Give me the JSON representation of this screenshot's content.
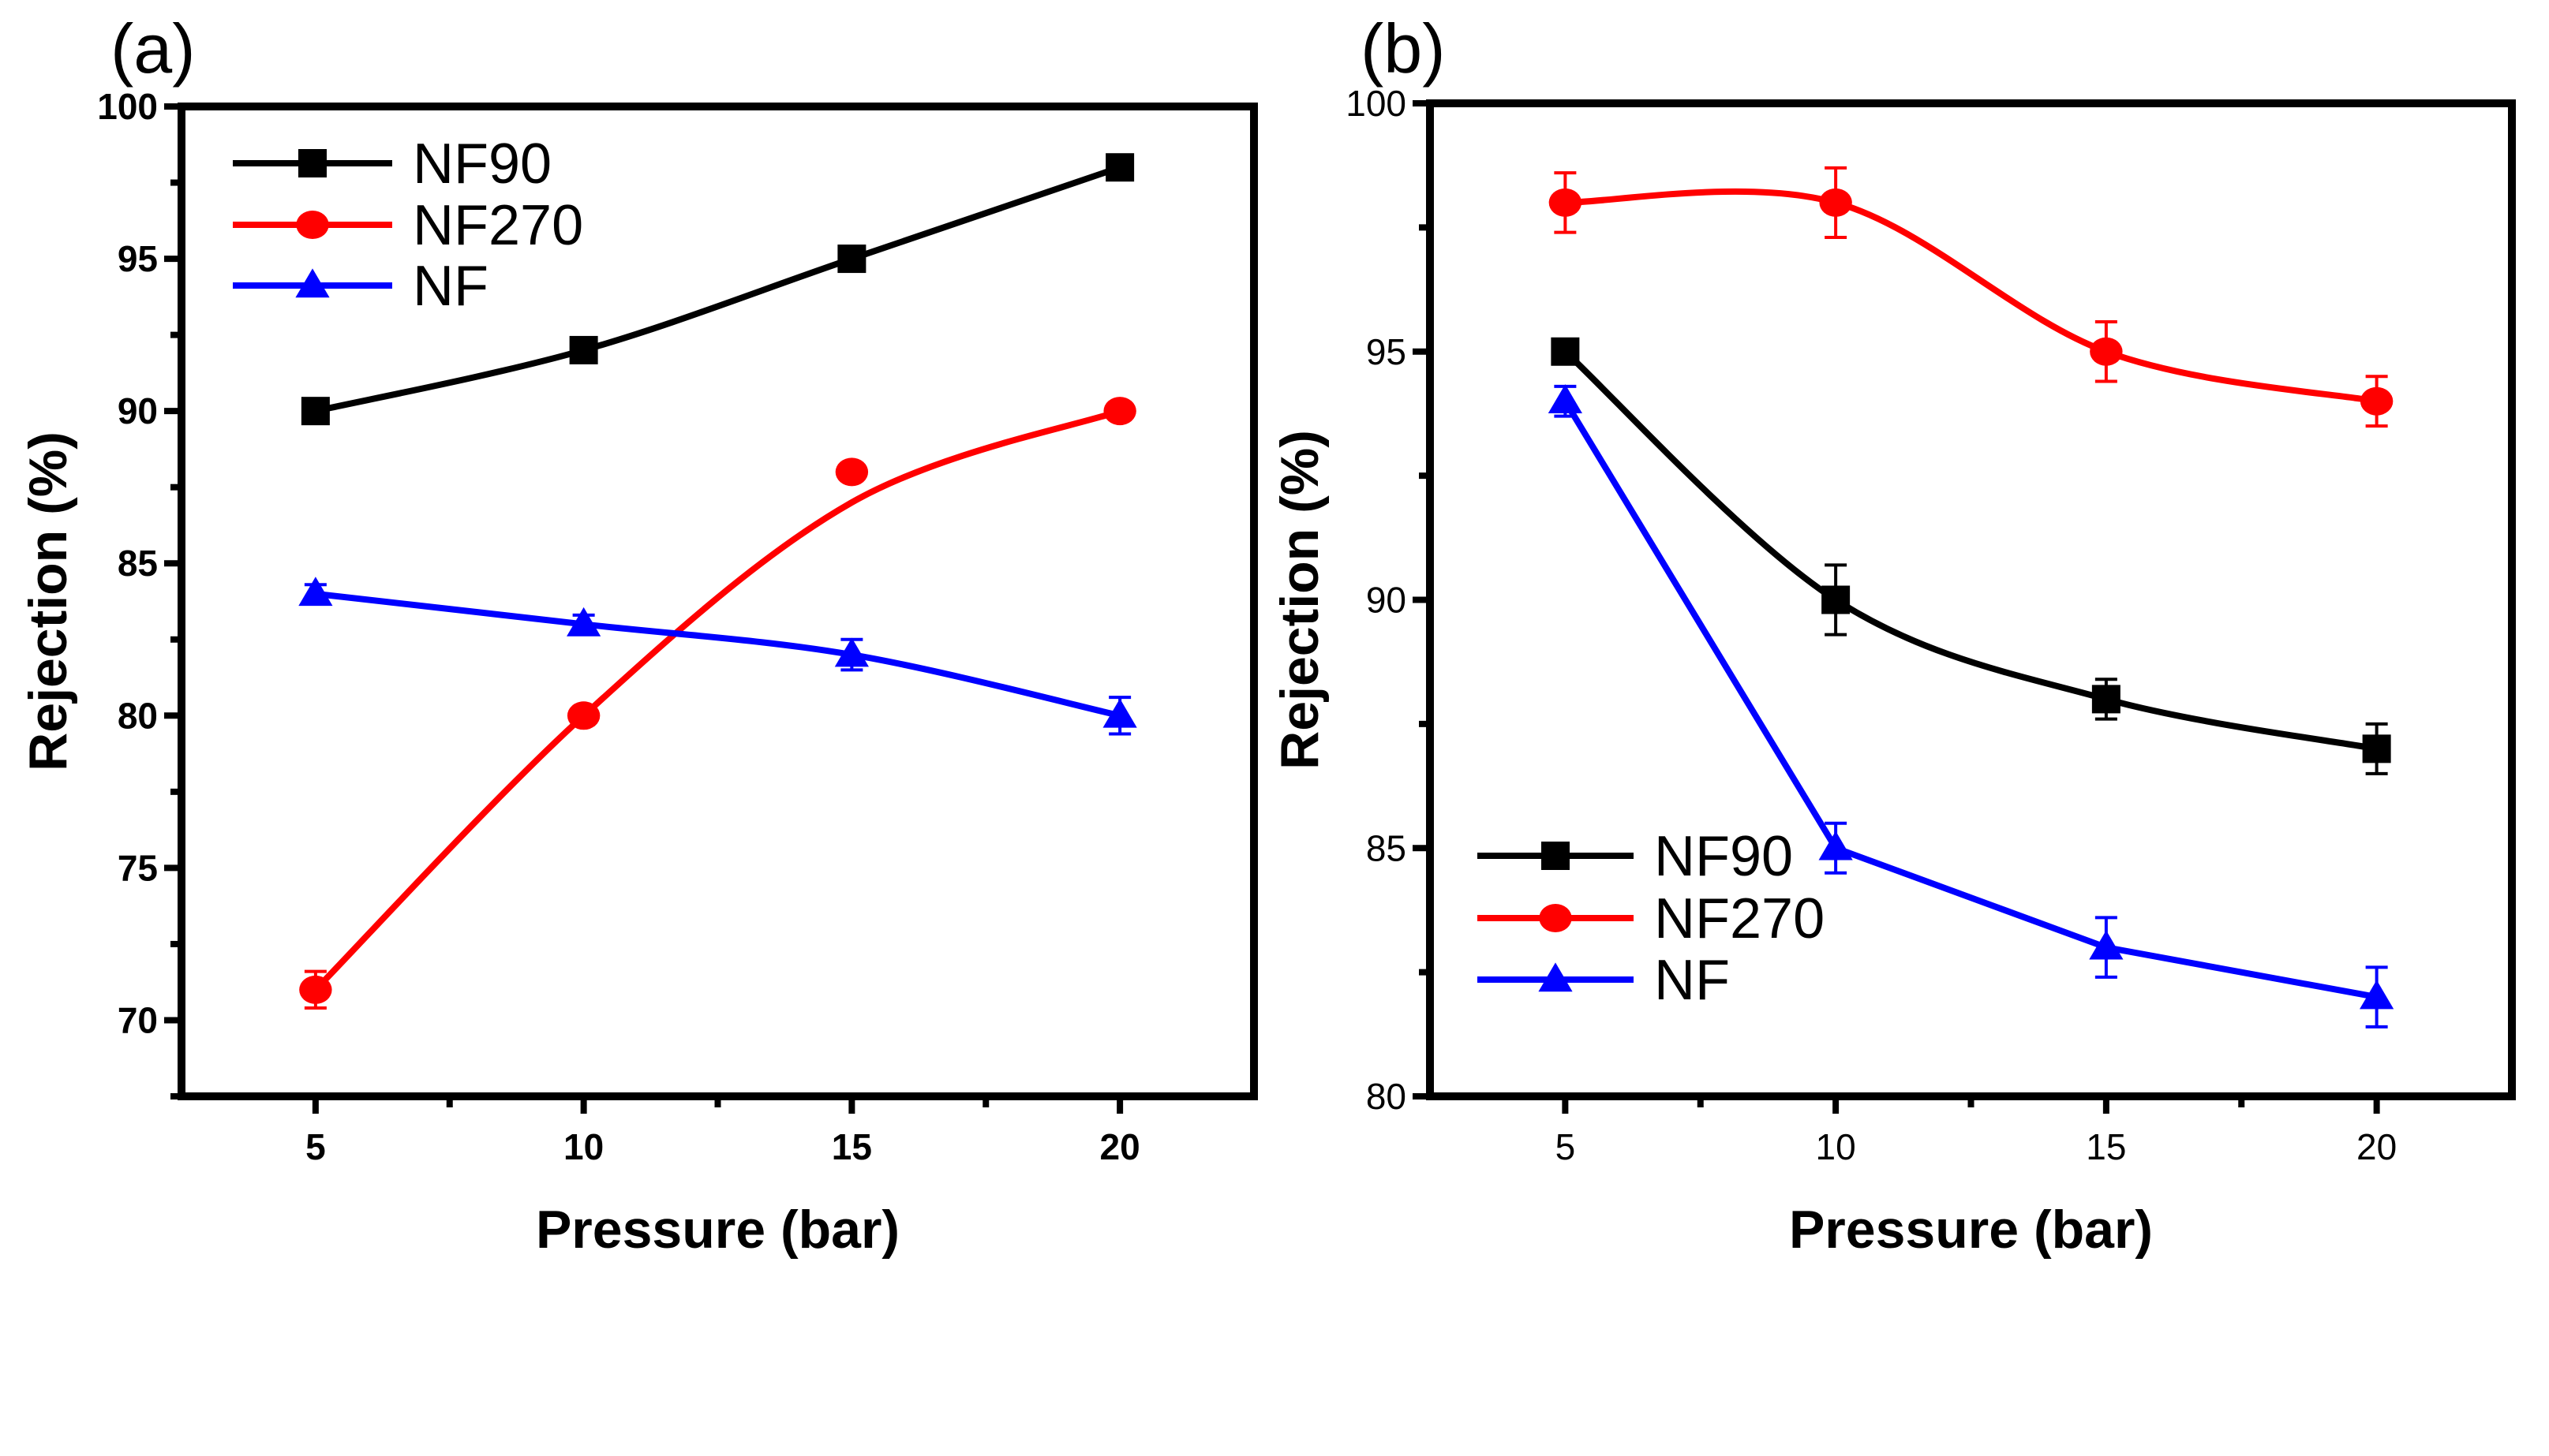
{
  "chart_data": [
    {
      "type": "line",
      "panel_label": "(a)",
      "xlabel": "Pressure (bar)",
      "ylabel": "Rejection (%)",
      "xlim": [
        2.5,
        22.5
      ],
      "ylim": [
        67.5,
        100
      ],
      "xticks": [
        5,
        10,
        15,
        20
      ],
      "yticks": [
        70,
        75,
        80,
        85,
        90,
        95,
        100
      ],
      "tick_labels_bold": true,
      "grid": false,
      "legend_position": "top-left",
      "x": [
        5,
        10,
        15,
        20
      ],
      "series": [
        {
          "name": "NF90",
          "color": "#000000",
          "marker": "square",
          "smooth": true,
          "values": [
            90,
            92,
            95,
            98
          ],
          "errors": [
            0,
            0,
            0,
            0
          ]
        },
        {
          "name": "NF270",
          "color": "#ff0000",
          "marker": "circle",
          "smooth": true,
          "values": [
            71,
            80,
            88,
            90
          ],
          "fit_values": [
            71,
            80,
            87,
            90
          ],
          "errors": [
            0.6,
            0.3,
            0,
            0
          ]
        },
        {
          "name": "NF",
          "color": "#0000ff",
          "marker": "triangle",
          "smooth": true,
          "values": [
            84,
            83,
            82,
            80
          ],
          "errors": [
            0.3,
            0.3,
            0.5,
            0.6
          ]
        }
      ]
    },
    {
      "type": "line",
      "panel_label": "(b)",
      "xlabel": "Pressure (bar)",
      "ylabel": "Rejection (%)",
      "xlim": [
        2.5,
        22.5
      ],
      "ylim": [
        80,
        100
      ],
      "xticks": [
        5,
        10,
        15,
        20
      ],
      "yticks": [
        80,
        85,
        90,
        95,
        100
      ],
      "tick_labels_bold": false,
      "grid": false,
      "legend_position": "bottom-left",
      "x": [
        5,
        10,
        15,
        20
      ],
      "series": [
        {
          "name": "NF90",
          "color": "#000000",
          "marker": "square",
          "smooth": true,
          "values": [
            95,
            90,
            88,
            87
          ],
          "errors": [
            0,
            0.7,
            0.4,
            0.5
          ]
        },
        {
          "name": "NF270",
          "color": "#ff0000",
          "marker": "circle",
          "smooth": true,
          "values": [
            98,
            98,
            95,
            94
          ],
          "errors": [
            0.6,
            0.7,
            0.6,
            0.5
          ]
        },
        {
          "name": "NF",
          "color": "#0000ff",
          "marker": "triangle",
          "smooth": false,
          "values": [
            94,
            85,
            83,
            82
          ],
          "errors": [
            0.3,
            0.5,
            0.6,
            0.6
          ]
        }
      ]
    }
  ]
}
